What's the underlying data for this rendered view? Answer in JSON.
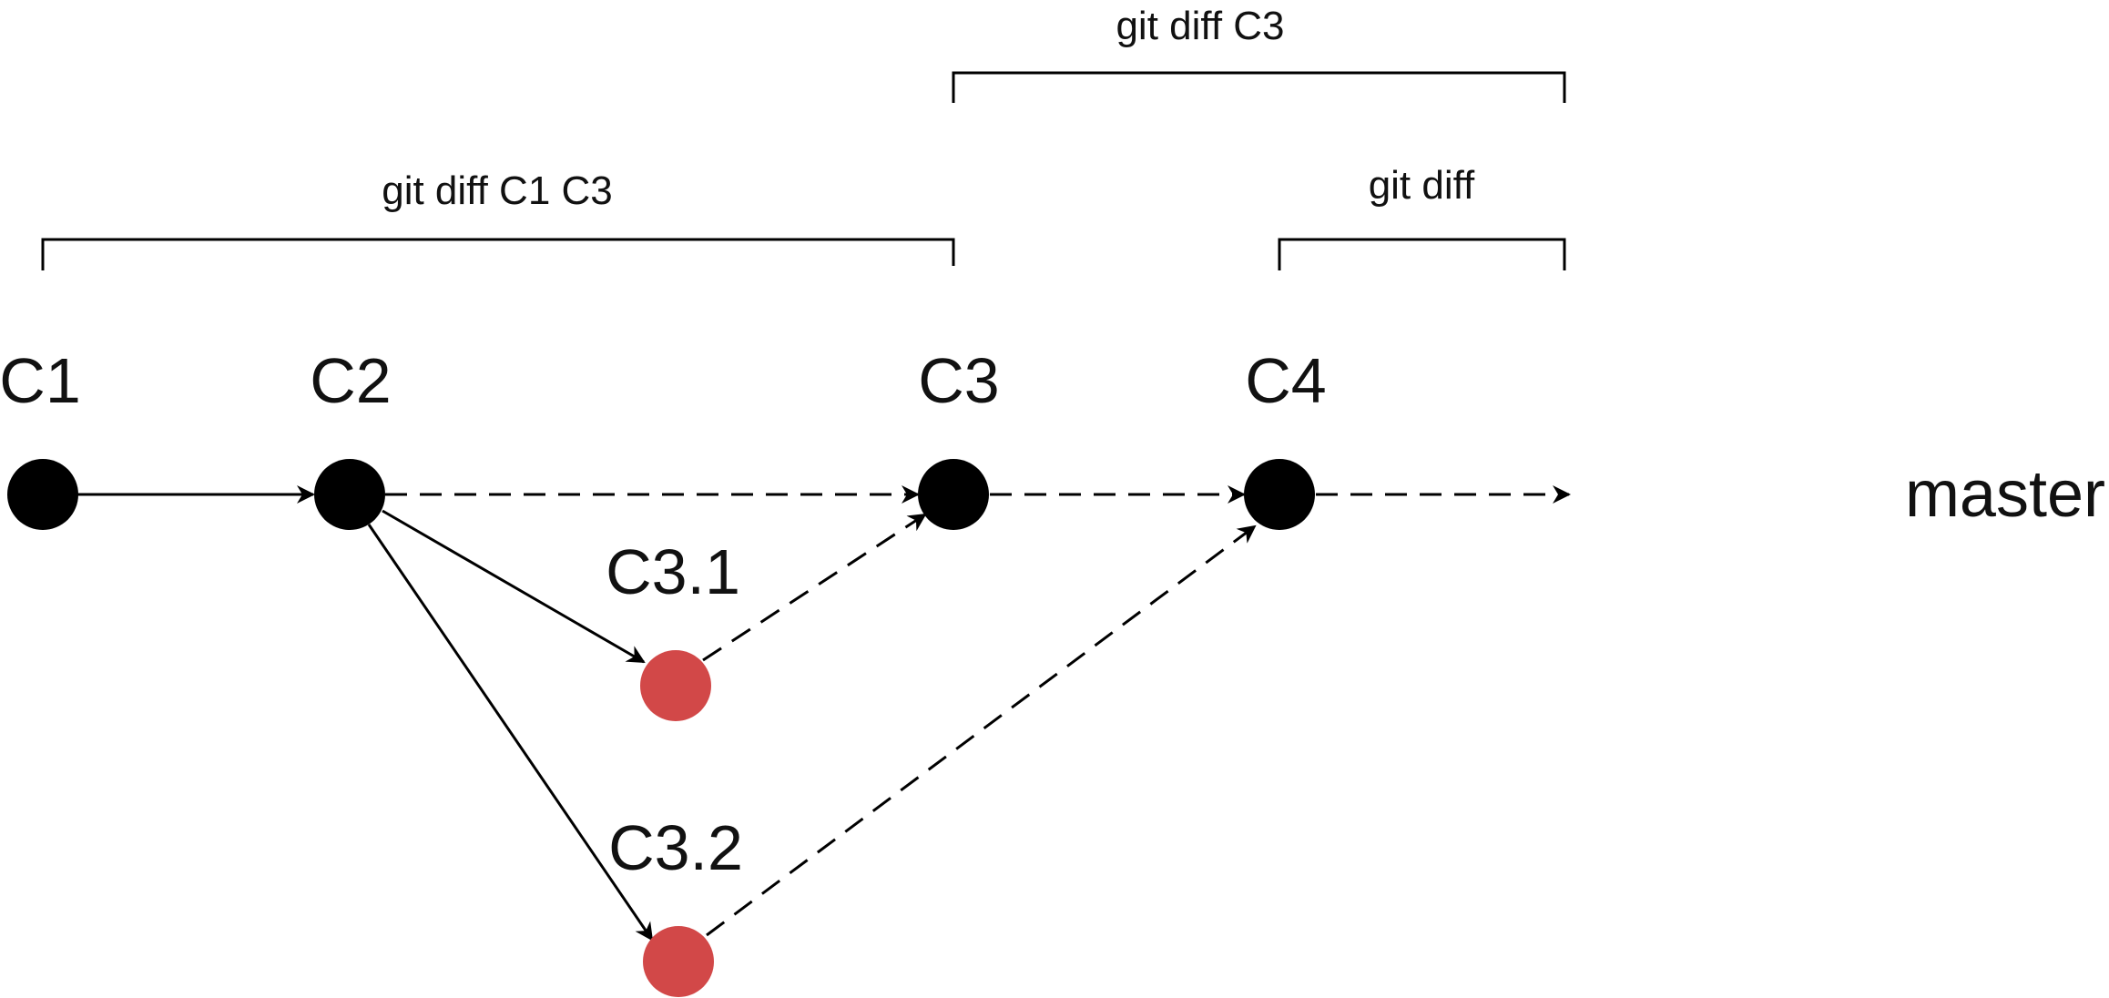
{
  "brackets": {
    "diff_c3": "git diff C3",
    "diff_c1_c3": "git diff C1 C3",
    "diff": "git diff"
  },
  "nodes": {
    "c1": "C1",
    "c2": "C2",
    "c3": "C3",
    "c4": "C4",
    "c3_1": "C3.1",
    "c3_2": "C3.2"
  },
  "branch": "master",
  "colors": {
    "main_node": "#000000",
    "side_node": "#d24848",
    "line": "#000000"
  }
}
